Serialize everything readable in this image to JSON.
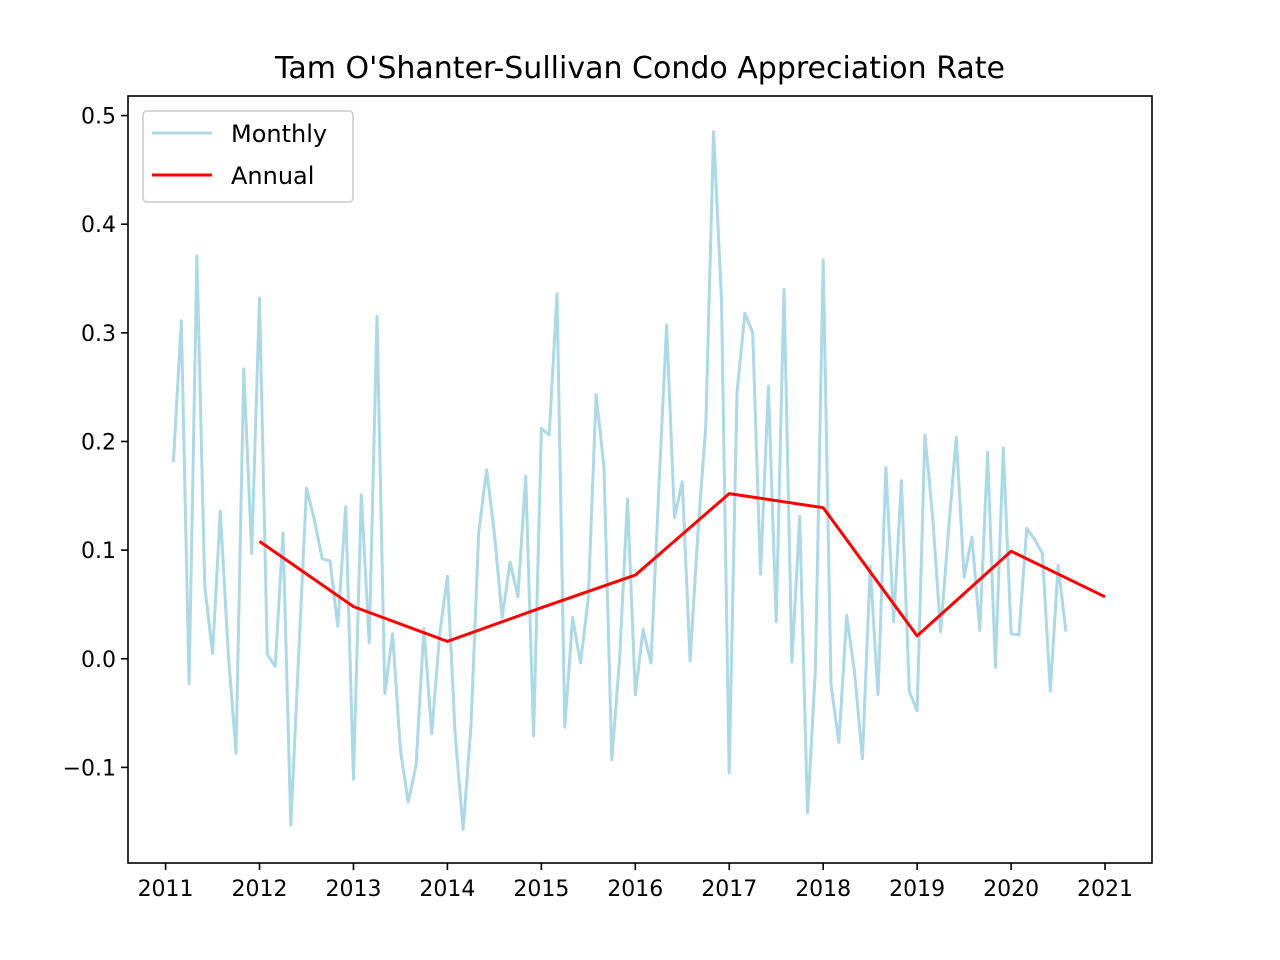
{
  "chart_data": {
    "type": "line",
    "title": "Tam O'Shanter-Sullivan Condo Appreciation Rate",
    "xlabel": "",
    "ylabel": "",
    "xlim": [
      2010.6,
      2021.5
    ],
    "ylim": [
      -0.188,
      0.518
    ],
    "x_ticks": [
      "2011",
      "2012",
      "2013",
      "2014",
      "2015",
      "2016",
      "2017",
      "2018",
      "2019",
      "2020",
      "2021"
    ],
    "y_ticks": [
      "−0.1",
      "0.0",
      "0.1",
      "0.2",
      "0.3",
      "0.4",
      "0.5"
    ],
    "legend_position": "top-left",
    "grid": false,
    "series": [
      {
        "name": "Monthly",
        "color": "#add8e6",
        "x": [
          2011.083,
          2011.167,
          2011.25,
          2011.333,
          2011.417,
          2011.5,
          2011.583,
          2011.667,
          2011.75,
          2011.833,
          2011.917,
          2012.0,
          2012.083,
          2012.167,
          2012.25,
          2012.333,
          2012.417,
          2012.5,
          2012.583,
          2012.667,
          2012.75,
          2012.833,
          2012.917,
          2013.0,
          2013.083,
          2013.167,
          2013.25,
          2013.333,
          2013.417,
          2013.5,
          2013.583,
          2013.667,
          2013.75,
          2013.833,
          2013.917,
          2014.0,
          2014.083,
          2014.167,
          2014.25,
          2014.333,
          2014.417,
          2014.5,
          2014.583,
          2014.667,
          2014.75,
          2014.833,
          2014.917,
          2015.0,
          2015.083,
          2015.167,
          2015.25,
          2015.333,
          2015.417,
          2015.5,
          2015.583,
          2015.667,
          2015.75,
          2015.833,
          2015.917,
          2016.0,
          2016.083,
          2016.167,
          2016.25,
          2016.333,
          2016.417,
          2016.5,
          2016.583,
          2016.667,
          2016.75,
          2016.833,
          2016.917,
          2017.0,
          2017.083,
          2017.167,
          2017.25,
          2017.333,
          2017.417,
          2017.5,
          2017.583,
          2017.667,
          2017.75,
          2017.833,
          2017.917,
          2018.0,
          2018.083,
          2018.167,
          2018.25,
          2018.333,
          2018.417,
          2018.5,
          2018.583,
          2018.667,
          2018.75,
          2018.833,
          2018.917,
          2019.0,
          2019.083,
          2019.167,
          2019.25,
          2019.333,
          2019.417,
          2019.5,
          2019.583,
          2019.667,
          2019.75,
          2019.833,
          2019.917,
          2020.0,
          2020.083,
          2020.167,
          2020.25,
          2020.333,
          2020.417,
          2020.5,
          2020.583
        ],
        "values": [
          0.181,
          0.311,
          -0.023,
          0.371,
          0.066,
          0.005,
          0.136,
          0.006,
          -0.087,
          0.267,
          0.097,
          0.332,
          0.004,
          -0.007,
          0.116,
          -0.153,
          0.004,
          0.157,
          0.128,
          0.092,
          0.09,
          0.03,
          0.14,
          -0.111,
          0.151,
          0.015,
          0.315,
          -0.032,
          0.023,
          -0.084,
          -0.132,
          -0.098,
          0.028,
          -0.069,
          0.022,
          0.076,
          -0.07,
          -0.157,
          -0.063,
          0.116,
          0.174,
          0.115,
          0.038,
          0.089,
          0.057,
          0.168,
          -0.071,
          0.212,
          0.206,
          0.336,
          -0.063,
          0.038,
          -0.004,
          0.056,
          0.243,
          0.176,
          -0.093,
          0.0,
          0.147,
          -0.033,
          0.027,
          -0.004,
          0.156,
          0.307,
          0.13,
          0.163,
          -0.002,
          0.117,
          0.215,
          0.485,
          0.33,
          -0.105,
          0.245,
          0.318,
          0.3,
          0.078,
          0.251,
          0.034,
          0.34,
          -0.003,
          0.131,
          -0.142,
          -0.01,
          0.367,
          -0.024,
          -0.077,
          0.04,
          -0.012,
          -0.092,
          0.085,
          -0.033,
          0.176,
          0.034,
          0.164,
          -0.03,
          -0.048,
          0.206,
          0.129,
          0.025,
          0.117,
          0.204,
          0.075,
          0.112,
          0.026,
          0.19,
          -0.008,
          0.194,
          0.023,
          0.022,
          0.12,
          0.11,
          0.097,
          -0.03,
          0.086,
          0.025
        ]
      },
      {
        "name": "Annual",
        "color": "#ff0000",
        "x": [
          2012,
          2013,
          2014,
          2015,
          2016,
          2017,
          2018,
          2019,
          2020,
          2021
        ],
        "values": [
          0.108,
          0.048,
          0.016,
          0.047,
          0.077,
          0.152,
          0.139,
          0.021,
          0.099,
          0.057
        ]
      }
    ]
  }
}
